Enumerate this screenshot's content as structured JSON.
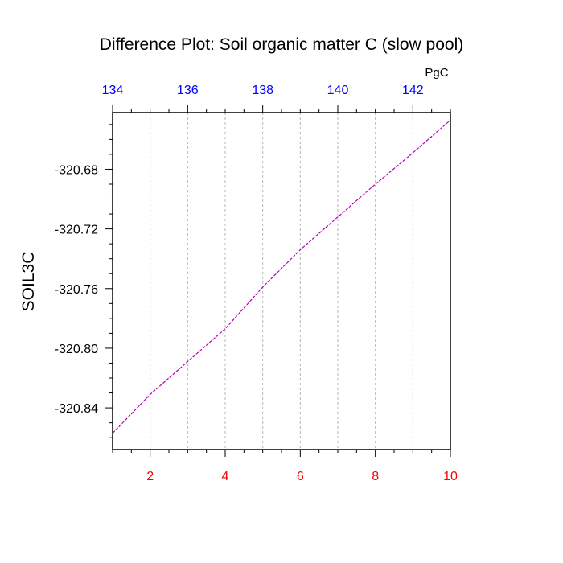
{
  "chart_data": {
    "type": "line",
    "title": "Difference Plot: Soil organic matter C (slow pool)",
    "ylabel": "SOIL3C",
    "top_axis_units": "PgC",
    "x": [
      1,
      2,
      3,
      4,
      5,
      6,
      7,
      8,
      9,
      10
    ],
    "series": [
      {
        "values": [
          -320.857,
          -320.831,
          -320.809,
          -320.787,
          -320.759,
          -320.734,
          -320.712,
          -320.69,
          -320.669,
          -320.647
        ]
      }
    ],
    "xlim": [
      1,
      10
    ],
    "ylim": [
      -320.868,
      -320.642
    ],
    "xticks_bottom": [
      2,
      4,
      6,
      8,
      10
    ],
    "xticks_bottom_labels": [
      "2",
      "4",
      "6",
      "8",
      "10"
    ],
    "xticks_top_values": [
      1,
      3,
      5,
      7,
      9
    ],
    "xticks_top_labels": [
      "134",
      "136",
      "138",
      "140",
      "142"
    ],
    "yticks": [
      -320.68,
      -320.72,
      -320.76,
      -320.8,
      -320.84
    ],
    "yticks_labels": [
      "-320.68",
      "-320.72",
      "-320.76",
      "-320.80",
      "-320.84"
    ],
    "grid": "vertical-dashed",
    "colors": {
      "line": "#b400b4",
      "bottom_ticks": "#ff0000",
      "top_ticks": "#0000ff",
      "grid": "#b4b4b4"
    }
  }
}
